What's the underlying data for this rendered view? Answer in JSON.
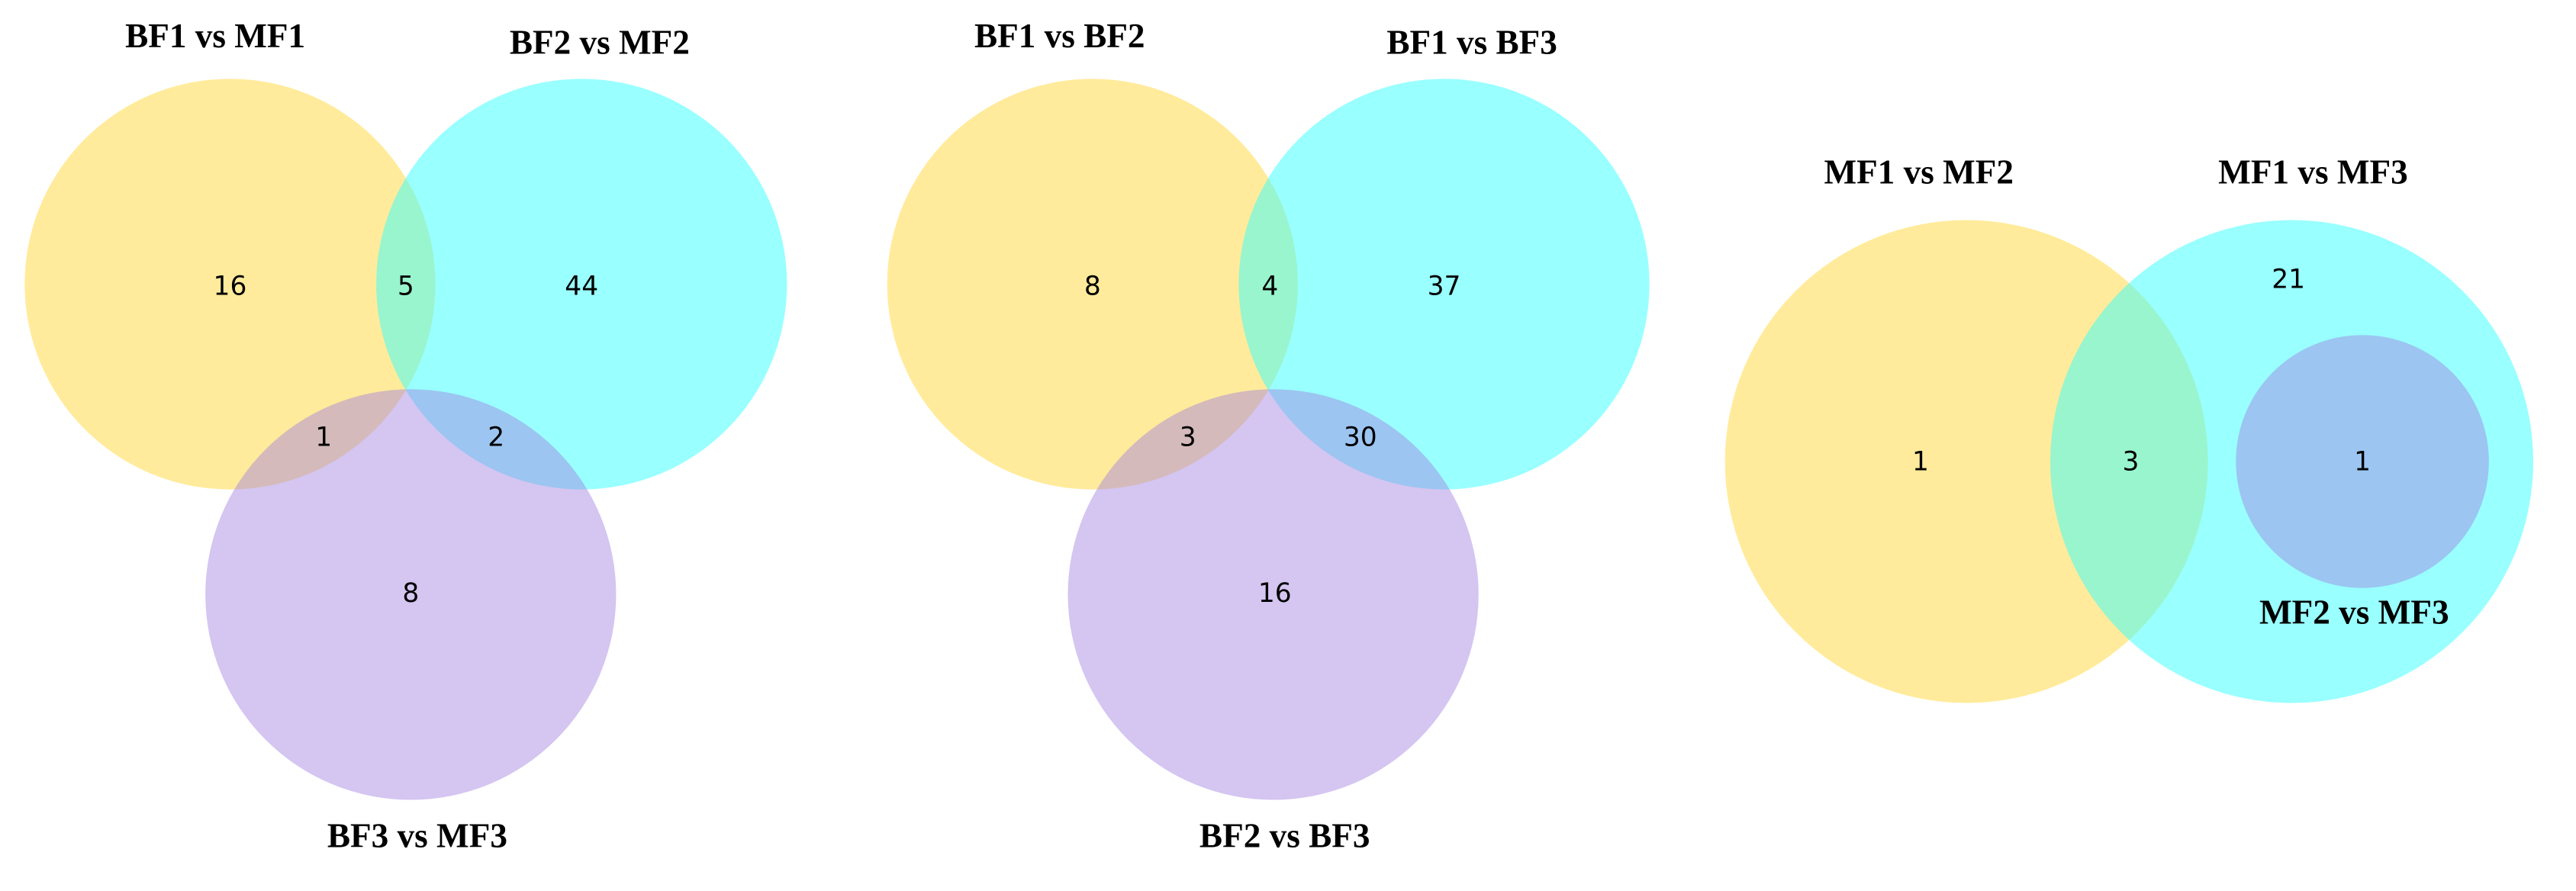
{
  "diagrams": [
    {
      "sets": [
        {
          "label": "BF1 vs MF1"
        },
        {
          "label": "BF2 vs MF2"
        },
        {
          "label": "BF3 vs MF3"
        }
      ],
      "regions": [
        16,
        5,
        44,
        1,
        2,
        8
      ]
    },
    {
      "sets": [
        {
          "label": "BF1 vs BF2"
        },
        {
          "label": "BF1 vs BF3"
        },
        {
          "label": "BF2 vs BF3"
        }
      ],
      "regions": [
        8,
        4,
        37,
        3,
        30,
        16
      ]
    },
    {
      "sets": [
        {
          "label": "MF1 vs MF2"
        },
        {
          "label": "MF1 vs MF3"
        },
        {
          "label": "MF2 vs MF3"
        }
      ],
      "regions": [
        1,
        3,
        21,
        1
      ]
    }
  ]
}
